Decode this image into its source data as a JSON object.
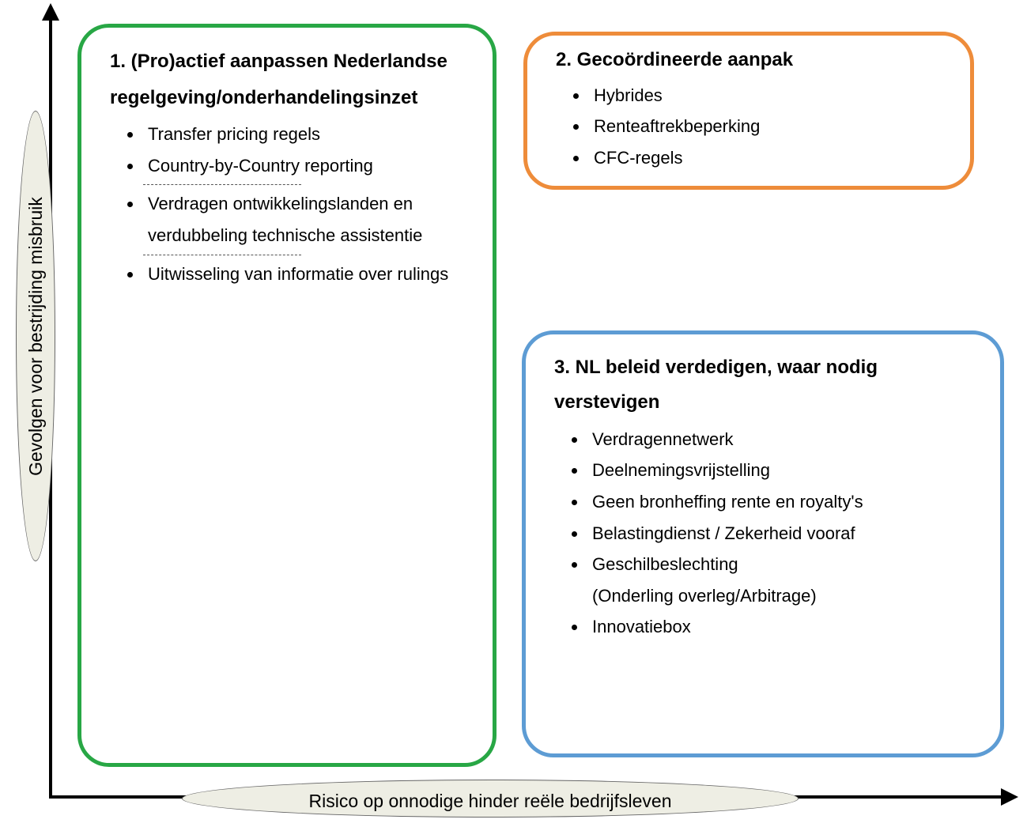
{
  "diagram": {
    "type": "infographic",
    "background_color": "#ffffff",
    "axis_color": "#000000",
    "axis_line_width": 4,
    "axis_label_bg": "#eeeee4",
    "axis_label_border": "#666666",
    "y_axis": {
      "label": "Gevolgen voor bestrijding misbruik",
      "fontsize": 23
    },
    "x_axis": {
      "label": "Risico op onnodige hinder reële bedrijfsleven",
      "fontsize": 23
    },
    "boxes": {
      "box1": {
        "border_color": "#28a745",
        "border_width": 5,
        "border_radius": 40,
        "title": "1. (Pro)actief aanpassen Nederlandse regelgeving/onderhandelingsinzet",
        "title_fontsize": 24,
        "item_fontsize": 22,
        "items_a": [
          "Transfer pricing regels",
          "Country-by-Country reporting"
        ],
        "items_b": [
          "Verdragen ontwikkelingslanden en verdubbeling technische assistentie"
        ],
        "items_c": [
          "Uitwisseling van informatie over rulings"
        ]
      },
      "box2": {
        "border_color": "#ee8c3a",
        "border_width": 5,
        "border_radius": 40,
        "title": "2. Gecoördineerde aanpak",
        "title_fontsize": 24,
        "item_fontsize": 22,
        "items": [
          "Hybrides",
          "Renteaftrekbeperking",
          "CFC-regels"
        ]
      },
      "box3": {
        "border_color": "#5d9cd4",
        "border_width": 5,
        "border_radius": 40,
        "title": "3. NL beleid verdedigen, waar nodig verstevigen",
        "title_fontsize": 24,
        "item_fontsize": 22,
        "items": [
          "Verdragennetwerk",
          "Deelnemingsvrijstelling",
          "Geen bronheffing rente en royalty's",
          "Belastingdienst / Zekerheid vooraf",
          "Geschilbeslechting",
          "Innovatiebox"
        ],
        "sub_item_after_index": 4,
        "sub_item": "(Onderling overleg/Arbitrage)"
      }
    }
  }
}
